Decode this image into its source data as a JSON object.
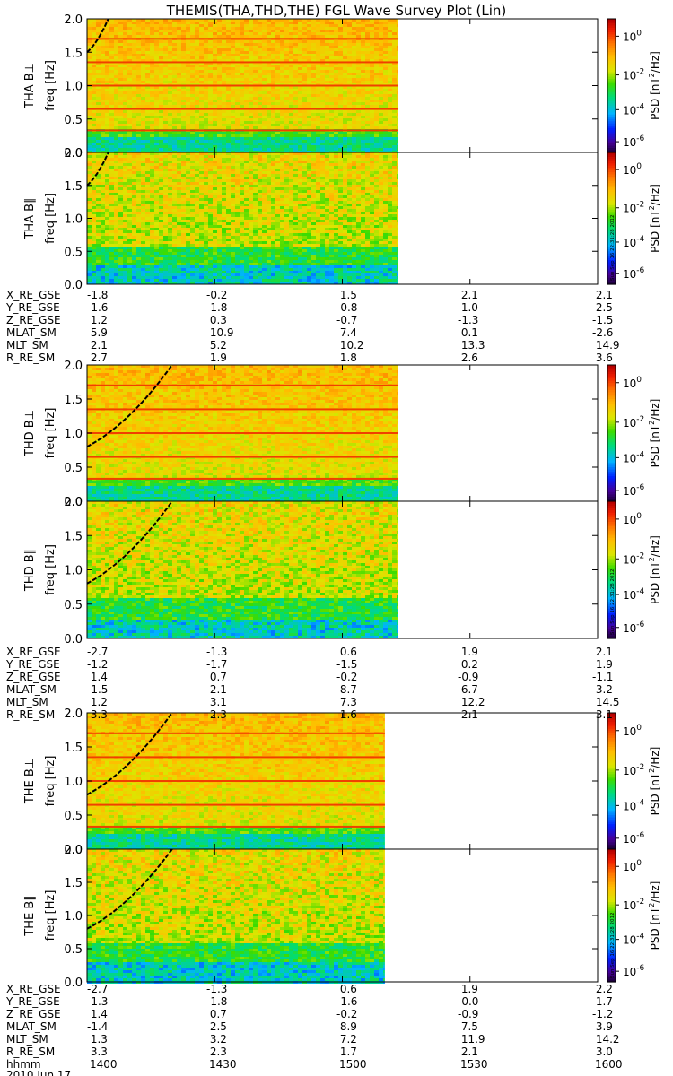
{
  "title": "THEMIS(THA,THD,THE) FGL Wave Survey Plot (Lin)",
  "colorbar": {
    "label": "PSD [nT^2/Hz]",
    "ticks": [
      "10^0",
      "10^-2",
      "10^-4",
      "10^-6"
    ],
    "stamp": "Sun Sep 16 22:31:28 2012"
  },
  "chart_data": [
    {
      "type": "heatmap",
      "probe": "THA",
      "component": "B⊥",
      "ylabel": "THA B⊥\nfreq [Hz]",
      "ylim": [
        0,
        2
      ],
      "yticks": [
        "0.0",
        "0.5",
        "1.0",
        "1.5",
        "2.0"
      ],
      "data_coverage_hhmm": [
        "1400",
        "1513"
      ],
      "fce_curve": {
        "x": [
          "1400",
          "1405"
        ],
        "y": [
          1.5,
          2.0
        ]
      },
      "emission_lines_hz": [
        0.33,
        0.65,
        1.0,
        1.35,
        1.7
      ]
    },
    {
      "type": "heatmap",
      "probe": "THA",
      "component": "B∥",
      "ylabel": "THA B∥\nfreq [Hz]",
      "ylim": [
        0,
        2
      ],
      "yticks": [
        "0.0",
        "0.5",
        "1.0",
        "1.5",
        "2.0"
      ],
      "data_coverage_hhmm": [
        "1400",
        "1513"
      ],
      "fce_curve": {
        "x": [
          "1400",
          "1405"
        ],
        "y": [
          1.5,
          2.0
        ]
      },
      "emission_lines_hz": []
    },
    {
      "type": "heatmap",
      "probe": "THD",
      "component": "B⊥",
      "ylabel": "THD B⊥\nfreq [Hz]",
      "ylim": [
        0,
        2
      ],
      "yticks": [
        "0.0",
        "0.5",
        "1.0",
        "1.5",
        "2.0"
      ],
      "data_coverage_hhmm": [
        "1400",
        "1513"
      ],
      "fce_curve": {
        "x": [
          "1400",
          "1420"
        ],
        "y": [
          0.8,
          2.0
        ]
      },
      "emission_lines_hz": [
        0.33,
        0.65,
        1.0,
        1.35,
        1.7
      ]
    },
    {
      "type": "heatmap",
      "probe": "THD",
      "component": "B∥",
      "ylabel": "THD B∥\nfreq [Hz]",
      "ylim": [
        0,
        2
      ],
      "yticks": [
        "0.0",
        "0.5",
        "1.0",
        "1.5",
        "2.0"
      ],
      "data_coverage_hhmm": [
        "1400",
        "1513"
      ],
      "fce_curve": {
        "x": [
          "1400",
          "1420"
        ],
        "y": [
          0.8,
          2.0
        ]
      },
      "emission_lines_hz": []
    },
    {
      "type": "heatmap",
      "probe": "THE",
      "component": "B⊥",
      "ylabel": "THE B⊥\nfreq [Hz]",
      "ylim": [
        0,
        2
      ],
      "yticks": [
        "0.0",
        "0.5",
        "1.0",
        "1.5",
        "2.0"
      ],
      "data_coverage_hhmm": [
        "1400",
        "1510"
      ],
      "fce_curve": {
        "x": [
          "1400",
          "1420"
        ],
        "y": [
          0.8,
          2.0
        ]
      },
      "emission_lines_hz": [
        0.33,
        0.65,
        1.0,
        1.35,
        1.7
      ]
    },
    {
      "type": "heatmap",
      "probe": "THE",
      "component": "B∥",
      "ylabel": "THE B∥\nfreq [Hz]",
      "ylim": [
        0,
        2
      ],
      "yticks": [
        "0.0",
        "0.5",
        "1.0",
        "1.5",
        "2.0"
      ],
      "data_coverage_hhmm": [
        "1400",
        "1510"
      ],
      "fce_curve": {
        "x": [
          "1400",
          "1420"
        ],
        "y": [
          0.8,
          2.0
        ]
      },
      "emission_lines_hz": []
    }
  ],
  "ephemeris": [
    {
      "probe": "THA",
      "rows": [
        {
          "label": "X_RE_GSE",
          "values": [
            "-1.8",
            "-0.2",
            "1.5",
            "2.1",
            "2.1"
          ]
        },
        {
          "label": "Y_RE_GSE",
          "values": [
            "-1.6",
            "-1.8",
            "-0.8",
            "1.0",
            "2.5"
          ]
        },
        {
          "label": "Z_RE_GSE",
          "values": [
            "1.2",
            "0.3",
            "-0.7",
            "-1.3",
            "-1.5"
          ]
        },
        {
          "label": "MLAT_SM",
          "values": [
            "5.9",
            "10.9",
            "7.4",
            "0.1",
            "-2.6"
          ]
        },
        {
          "label": "MLT_SM",
          "values": [
            "2.1",
            "5.2",
            "10.2",
            "13.3",
            "14.9"
          ]
        },
        {
          "label": "R_RE_SM",
          "values": [
            "2.7",
            "1.9",
            "1.8",
            "2.6",
            "3.6"
          ]
        }
      ]
    },
    {
      "probe": "THD",
      "rows": [
        {
          "label": "X_RE_GSE",
          "values": [
            "-2.7",
            "-1.3",
            "0.6",
            "1.9",
            "2.1"
          ]
        },
        {
          "label": "Y_RE_GSE",
          "values": [
            "-1.2",
            "-1.7",
            "-1.5",
            "0.2",
            "1.9"
          ]
        },
        {
          "label": "Z_RE_GSE",
          "values": [
            "1.4",
            "0.7",
            "-0.2",
            "-0.9",
            "-1.1"
          ]
        },
        {
          "label": "MLAT_SM",
          "values": [
            "-1.5",
            "2.1",
            "8.7",
            "6.7",
            "3.2"
          ]
        },
        {
          "label": "MLT_SM",
          "values": [
            "1.2",
            "3.1",
            "7.3",
            "12.2",
            "14.5"
          ]
        },
        {
          "label": "R_RE_SM",
          "values": [
            "3.3",
            "2.3",
            "1.6",
            "2.1",
            "3.1"
          ]
        }
      ]
    },
    {
      "probe": "THE",
      "rows": [
        {
          "label": "X_RE_GSE",
          "values": [
            "-2.7",
            "-1.3",
            "0.6",
            "1.9",
            "2.2"
          ]
        },
        {
          "label": "Y_RE_GSE",
          "values": [
            "-1.3",
            "-1.8",
            "-1.6",
            "-0.0",
            "1.7"
          ]
        },
        {
          "label": "Z_RE_GSE",
          "values": [
            "1.4",
            "0.7",
            "-0.2",
            "-0.9",
            "-1.2"
          ]
        },
        {
          "label": "MLAT_SM",
          "values": [
            "-1.4",
            "2.5",
            "8.9",
            "7.5",
            "3.9"
          ]
        },
        {
          "label": "MLT_SM",
          "values": [
            "1.3",
            "3.2",
            "7.2",
            "11.9",
            "14.2"
          ]
        },
        {
          "label": "R_RE_SM",
          "values": [
            "3.3",
            "2.3",
            "1.7",
            "2.1",
            "3.0"
          ]
        }
      ]
    }
  ],
  "time_axis": {
    "label": "hhmm",
    "ticks": [
      "1400",
      "1430",
      "1500",
      "1530",
      "1600"
    ],
    "date": "2010 Jun 17"
  }
}
